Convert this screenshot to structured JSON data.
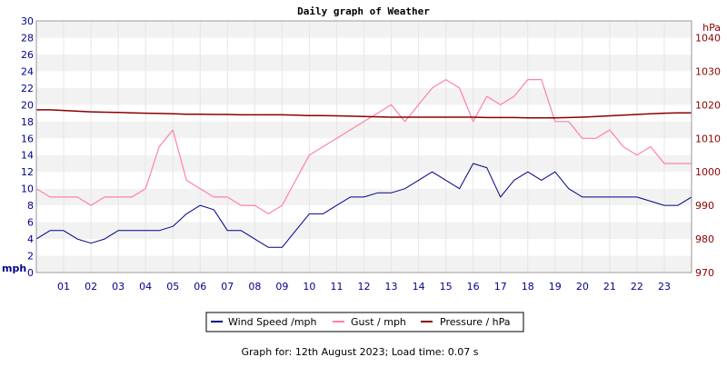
{
  "chart_data": {
    "type": "line",
    "title": "Daily graph of Weather",
    "ylabel": "mph",
    "y2label": "hPa",
    "ylim": [
      0,
      30
    ],
    "y2lim": [
      970,
      1045
    ],
    "yticks": [
      "0",
      "2",
      "4",
      "6",
      "8",
      "10",
      "12",
      "14",
      "16",
      "18",
      "20",
      "22",
      "24",
      "26",
      "28",
      "30"
    ],
    "y2ticks": [
      "970",
      "980",
      "990",
      "1000",
      "1010",
      "1020",
      "1030",
      "1040"
    ],
    "y2tick_values": [
      970,
      980,
      990,
      1000,
      1010,
      1020,
      1030,
      1040
    ],
    "xticks": [
      "01",
      "02",
      "03",
      "04",
      "05",
      "06",
      "07",
      "08",
      "09",
      "10",
      "11",
      "12",
      "13",
      "14",
      "15",
      "16",
      "17",
      "18",
      "19",
      "20",
      "21",
      "22",
      "23"
    ],
    "x_hours": [
      0,
      0.5,
      1,
      1.5,
      2,
      2.5,
      3,
      3.5,
      4,
      4.5,
      5,
      5.5,
      6,
      6.5,
      7,
      7.5,
      8,
      8.5,
      9,
      9.5,
      10,
      10.5,
      11,
      11.5,
      12,
      12.5,
      13,
      13.5,
      14,
      14.5,
      15,
      15.5,
      16,
      16.5,
      17,
      17.5,
      18,
      18.5,
      19,
      19.5,
      20,
      20.5,
      21,
      21.5,
      22,
      22.5,
      23,
      23.5,
      24
    ],
    "grid": true,
    "legend_position": "bottom",
    "series": [
      {
        "name": "Wind Speed /mph",
        "color": "#00008b",
        "axis": "left",
        "values": [
          4,
          5,
          5,
          4,
          3.5,
          4,
          5,
          5,
          5,
          5,
          5.5,
          7,
          8,
          7.5,
          5,
          5,
          4,
          3,
          3,
          5,
          7,
          7,
          8,
          9,
          9,
          9.5,
          9.5,
          10,
          11,
          12,
          11,
          10,
          13,
          12.5,
          9,
          11,
          12,
          11,
          12,
          10,
          9,
          9,
          9,
          9,
          9,
          8.5,
          8,
          8,
          9
        ]
      },
      {
        "name": "Gust / mph",
        "color": "#ff80a8",
        "axis": "left",
        "values": [
          10,
          9,
          9,
          9,
          8,
          9,
          9,
          9,
          10,
          15,
          17,
          11,
          10,
          9,
          9,
          8,
          8,
          7,
          8,
          11,
          14,
          15,
          16,
          17,
          18,
          19,
          20,
          18,
          20,
          22,
          23,
          22,
          18,
          21,
          20,
          21,
          23,
          23,
          18,
          18,
          16,
          16,
          17,
          15,
          14,
          15,
          13,
          13,
          13
        ]
      },
      {
        "name": "Pressure / hPa",
        "color": "#8b0000",
        "axis": "right",
        "values": [
          1018.5,
          1018.5,
          1018.3,
          1018.1,
          1017.9,
          1017.8,
          1017.7,
          1017.6,
          1017.5,
          1017.4,
          1017.3,
          1017.2,
          1017.2,
          1017.1,
          1017.1,
          1017,
          1017,
          1017,
          1017,
          1016.9,
          1016.8,
          1016.8,
          1016.7,
          1016.6,
          1016.5,
          1016.4,
          1016.3,
          1016.3,
          1016.3,
          1016.3,
          1016.3,
          1016.3,
          1016.3,
          1016.2,
          1016.2,
          1016.2,
          1016.1,
          1016.1,
          1016.1,
          1016.2,
          1016.3,
          1016.5,
          1016.7,
          1016.9,
          1017.1,
          1017.3,
          1017.5,
          1017.6,
          1017.6
        ]
      }
    ],
    "footer": "Graph for: 12th August 2023; Load time: 0.07 s"
  }
}
